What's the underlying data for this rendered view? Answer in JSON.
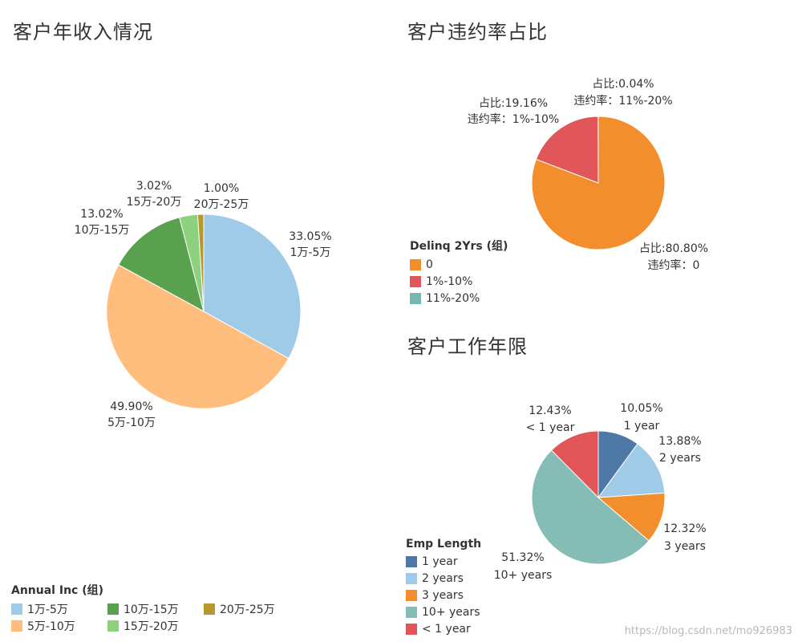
{
  "chart_data": [
    {
      "id": "income",
      "type": "pie",
      "title": "客户年收入情况",
      "legend_title": "Annual Inc (组)",
      "legend_position": "bottom-left",
      "slices": [
        {
          "label": "1万-5万",
          "value": 33.05,
          "pct_label": "33.05%",
          "color": "#A0CBE8"
        },
        {
          "label": "5万-10万",
          "value": 49.9,
          "pct_label": "49.90%",
          "color": "#FFBE7D"
        },
        {
          "label": "10万-15万",
          "value": 13.02,
          "pct_label": "13.02%",
          "color": "#59A14F"
        },
        {
          "label": "15万-20万",
          "value": 3.02,
          "pct_label": "3.02%",
          "color": "#8CD17D"
        },
        {
          "label": "20万-25万",
          "value": 1.0,
          "pct_label": "1.00%",
          "color": "#B6992D"
        }
      ],
      "legend_order": [
        "1万-5万",
        "10万-15万",
        "20万-25万",
        "5万-10万",
        "15万-20万"
      ]
    },
    {
      "id": "delinq",
      "type": "pie",
      "title": "客户违约率占比",
      "legend_title": "Delinq 2Yrs (组)",
      "legend_position": "bottom-left",
      "slices": [
        {
          "label": "0",
          "value": 80.8,
          "pct_label": "占比:80.80%",
          "sub_label": "违约率：0",
          "color": "#F28E2B"
        },
        {
          "label": "1%-10%",
          "value": 19.16,
          "pct_label": "占比:19.16%",
          "sub_label": "违约率：1%-10%",
          "color": "#E15759"
        },
        {
          "label": "11%-20%",
          "value": 0.04,
          "pct_label": "占比:0.04%",
          "sub_label": "违约率：11%-20%",
          "color": "#76B7B2"
        }
      ],
      "legend_order": [
        "0",
        "1%-10%",
        "11%-20%"
      ]
    },
    {
      "id": "emp",
      "type": "pie",
      "title": "客户工作年限",
      "legend_title": "Emp Length",
      "legend_position": "bottom-left",
      "slices": [
        {
          "label": "1 year",
          "value": 10.05,
          "pct_label": "10.05%",
          "color": "#4E79A7"
        },
        {
          "label": "2 years",
          "value": 13.88,
          "pct_label": "13.88%",
          "color": "#A0CBE8"
        },
        {
          "label": "3 years",
          "value": 12.32,
          "pct_label": "12.32%",
          "color": "#F28E2B"
        },
        {
          "label": "10+ years",
          "value": 51.32,
          "pct_label": "51.32%",
          "color": "#86BCB6"
        },
        {
          "label": "< 1 year",
          "value": 12.43,
          "pct_label": "12.43%",
          "color": "#E15759"
        }
      ],
      "legend_order": [
        "1 year",
        "2 years",
        "3 years",
        "10+ years",
        "< 1 year"
      ]
    }
  ],
  "watermark": "https://blog.csdn.net/mo926983"
}
